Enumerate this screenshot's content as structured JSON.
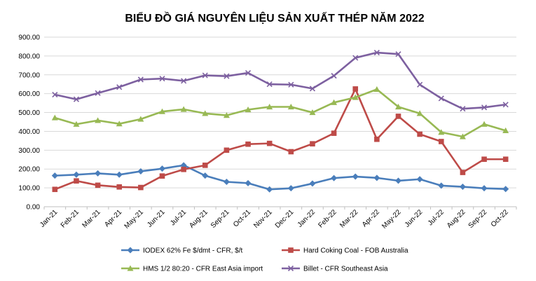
{
  "chart_data": {
    "type": "line",
    "title": "BIỂU ĐỒ GIÁ NGUYÊN LIỆU SẢN XUẤT THÉP NĂM 2022",
    "categories": [
      "Jan-21",
      "Feb-21",
      "Mar-21",
      "Apr-21",
      "May-21",
      "Jun-21",
      "Jul-21",
      "Aug-21",
      "Sep-21",
      "Oct-21",
      "Nov-21",
      "Dec-21",
      "Jan-22",
      "Feb-22",
      "Mar-22",
      "Apr-22",
      "May-22",
      "Jun-22",
      "Jul-22",
      "Aug-22",
      "Sep-22",
      "Oct-22"
    ],
    "ylim": [
      0,
      900
    ],
    "yticks": [
      "0.00",
      "100.00",
      "200.00",
      "300.00",
      "400.00",
      "500.00",
      "600.00",
      "700.00",
      "800.00",
      "900.00"
    ],
    "grid": true,
    "legend_position": "bottom",
    "series": [
      {
        "name": "IODEX 62% Fe $/dmt - CFR, $/t",
        "color": "#4a7ebb",
        "marker": "diamond",
        "values": [
          165,
          170,
          177,
          170,
          188,
          202,
          220,
          165,
          132,
          125,
          92,
          98,
          123,
          152,
          160,
          153,
          138,
          146,
          112,
          106,
          98,
          94
        ]
      },
      {
        "name": "Hard Coking Coal - FOB Australia",
        "color": "#be4b48",
        "marker": "square",
        "values": [
          92,
          137,
          114,
          105,
          102,
          163,
          198,
          220,
          300,
          332,
          336,
          292,
          334,
          390,
          625,
          358,
          480,
          385,
          346,
          182,
          252,
          252
        ]
      },
      {
        "name": "HMS 1/2 80:20 - CFR East Asia import",
        "color": "#98b954",
        "marker": "triangle",
        "values": [
          472,
          438,
          458,
          440,
          465,
          505,
          517,
          495,
          485,
          515,
          530,
          530,
          500,
          553,
          580,
          623,
          530,
          495,
          395,
          372,
          438,
          404
        ]
      },
      {
        "name": "Billet - CFR Southeast Asia",
        "color": "#7d60a0",
        "marker": "x",
        "values": [
          595,
          570,
          603,
          635,
          675,
          680,
          668,
          697,
          693,
          710,
          650,
          648,
          627,
          695,
          790,
          818,
          810,
          648,
          575,
          520,
          527,
          542
        ]
      }
    ]
  }
}
